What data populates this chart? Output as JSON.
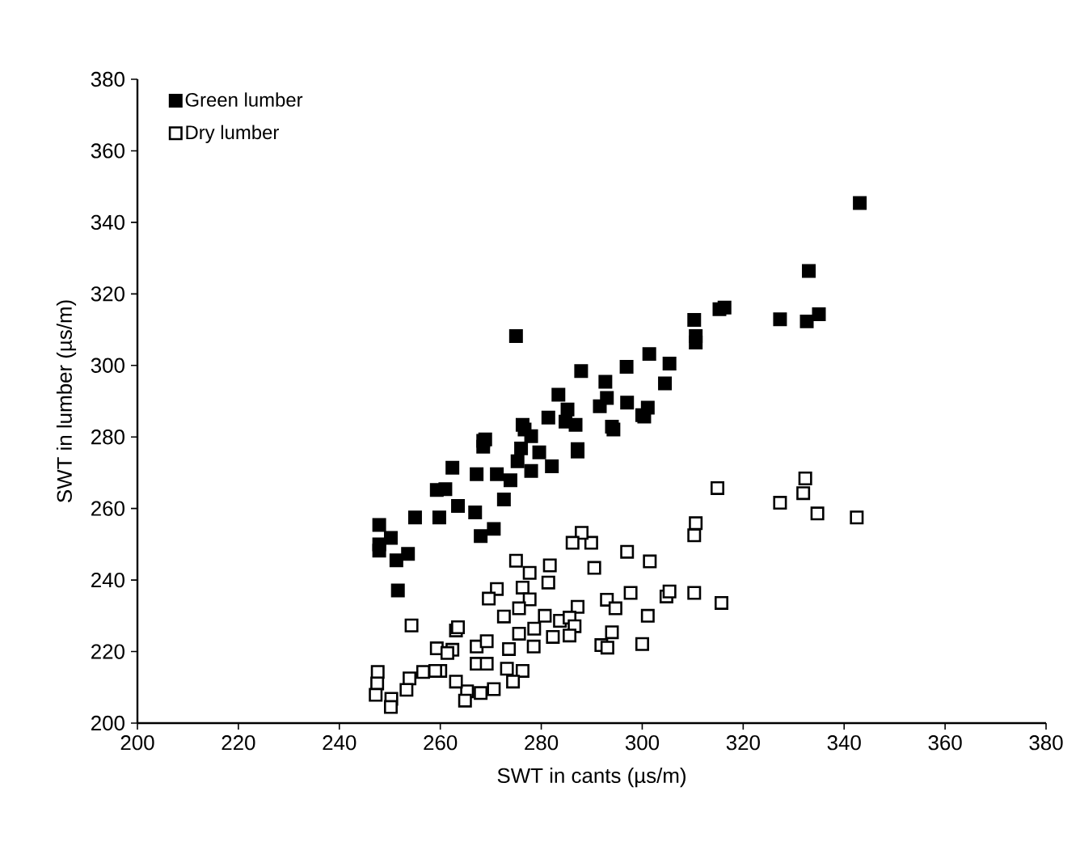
{
  "chart_data": {
    "type": "scatter",
    "xlabel": "SWT in cants (µs/m)",
    "ylabel": "SWT in lumber (µs/m)",
    "xlim": [
      200,
      380
    ],
    "xticks": [
      200,
      220,
      240,
      260,
      280,
      300,
      320,
      340,
      360,
      380
    ],
    "ylim": [
      200,
      380
    ],
    "yticks": [
      200,
      220,
      240,
      260,
      280,
      300,
      320,
      340,
      360,
      380
    ],
    "grid": false,
    "legend": "top left",
    "marker": "square",
    "series": [
      {
        "name": "Green lumber",
        "color": "#000000",
        "x": [
          343.1,
          333,
          327.3,
          332.6,
          335,
          316.3,
          315.3,
          310.3,
          310.6,
          310.6,
          301.4,
          305.4,
          304.5,
          296.9,
          275,
          287.9,
          292.7,
          293,
          297,
          291.6,
          301.1,
          300,
          294,
          283.4,
          281.4,
          285.2,
          286.8,
          276.3,
          268.9,
          268.5,
          287.2,
          278,
          279.6,
          262.4,
          261,
          259.3,
          255,
          259.8,
          263.5,
          266.9,
          268.5,
          267.2,
          270.6,
          268,
          271.2,
          273.9,
          272.6,
          275.3,
          276,
          278,
          282.1,
          276.7,
          284.8,
          287.2,
          294.3,
          247.9,
          247.9,
          247.9,
          250.2,
          251.3,
          253.6,
          251.6,
          300.4
        ],
        "values": [
          345.4,
          326.4,
          312.9,
          312.3,
          314.3,
          316.2,
          315.7,
          312.7,
          308.2,
          306.4,
          303.2,
          300.5,
          295,
          299.6,
          308.2,
          298.4,
          295.4,
          290.9,
          289.6,
          288.6,
          288.2,
          286.1,
          282.9,
          291.8,
          285.4,
          287.7,
          283.4,
          283.4,
          279.3,
          277.3,
          276.6,
          280.2,
          275.7,
          271.4,
          265.4,
          265.2,
          257.5,
          257.5,
          260.7,
          258.9,
          278.9,
          269.6,
          254.3,
          252.3,
          269.6,
          267.9,
          262.5,
          273.2,
          276.8,
          270.5,
          271.8,
          282.1,
          284.3,
          275.9,
          282.1,
          255.4,
          250,
          248.2,
          251.8,
          245.5,
          247.3,
          237.1,
          285.7
        ]
      },
      {
        "name": "Dry lumber",
        "color": "#ffffff",
        "x": [
          342.5,
          334.7,
          332.3,
          331.9,
          327.3,
          314.9,
          310.6,
          310.3,
          310.3,
          315.7,
          304.8,
          305.4,
          301.5,
          297,
          301.1,
          297.7,
          300,
          293,
          294.7,
          294,
          291.9,
          293.1,
          290.5,
          289.9,
          288,
          286.2,
          275,
          277.7,
          281.7,
          281.4,
          271.2,
          269.6,
          276.3,
          277.7,
          275.6,
          272.6,
          280.7,
          283.7,
          287.2,
          285.6,
          286.6,
          278.6,
          275.6,
          282.3,
          285.6,
          278.5,
          273.6,
          254.3,
          263.1,
          263.5,
          262.4,
          259.3,
          261.4,
          267.2,
          269.2,
          267.2,
          269.2,
          273.2,
          276.3,
          274.4,
          270.6,
          268,
          265.3,
          264.9,
          263.1,
          260,
          256.6,
          259,
          253.9,
          253.3,
          250.3,
          250.2,
          247.6,
          247.5,
          247.2
        ],
        "values": [
          257.5,
          258.6,
          268.4,
          264.3,
          261.6,
          265.7,
          255.9,
          252.5,
          236.4,
          233.6,
          235.4,
          236.8,
          245.2,
          247.9,
          230,
          236.4,
          222.1,
          234.5,
          232.1,
          225.4,
          221.8,
          221.1,
          243.4,
          250.4,
          253.2,
          250.4,
          245.4,
          242,
          244.1,
          239.3,
          237.5,
          234.8,
          237.9,
          234.6,
          232.1,
          229.8,
          230,
          228.6,
          232.5,
          229.5,
          227.1,
          226.4,
          225,
          224.1,
          224.5,
          221.4,
          220.7,
          227.3,
          225.9,
          226.8,
          220.5,
          220.9,
          219.6,
          221.4,
          222.9,
          216.6,
          216.6,
          215.2,
          214.6,
          211.6,
          209.5,
          208.4,
          208.9,
          206.3,
          211.6,
          214.6,
          214.3,
          214.6,
          212.5,
          209.3,
          206.8,
          204.5,
          214.3,
          211.1,
          207.9
        ]
      }
    ]
  }
}
